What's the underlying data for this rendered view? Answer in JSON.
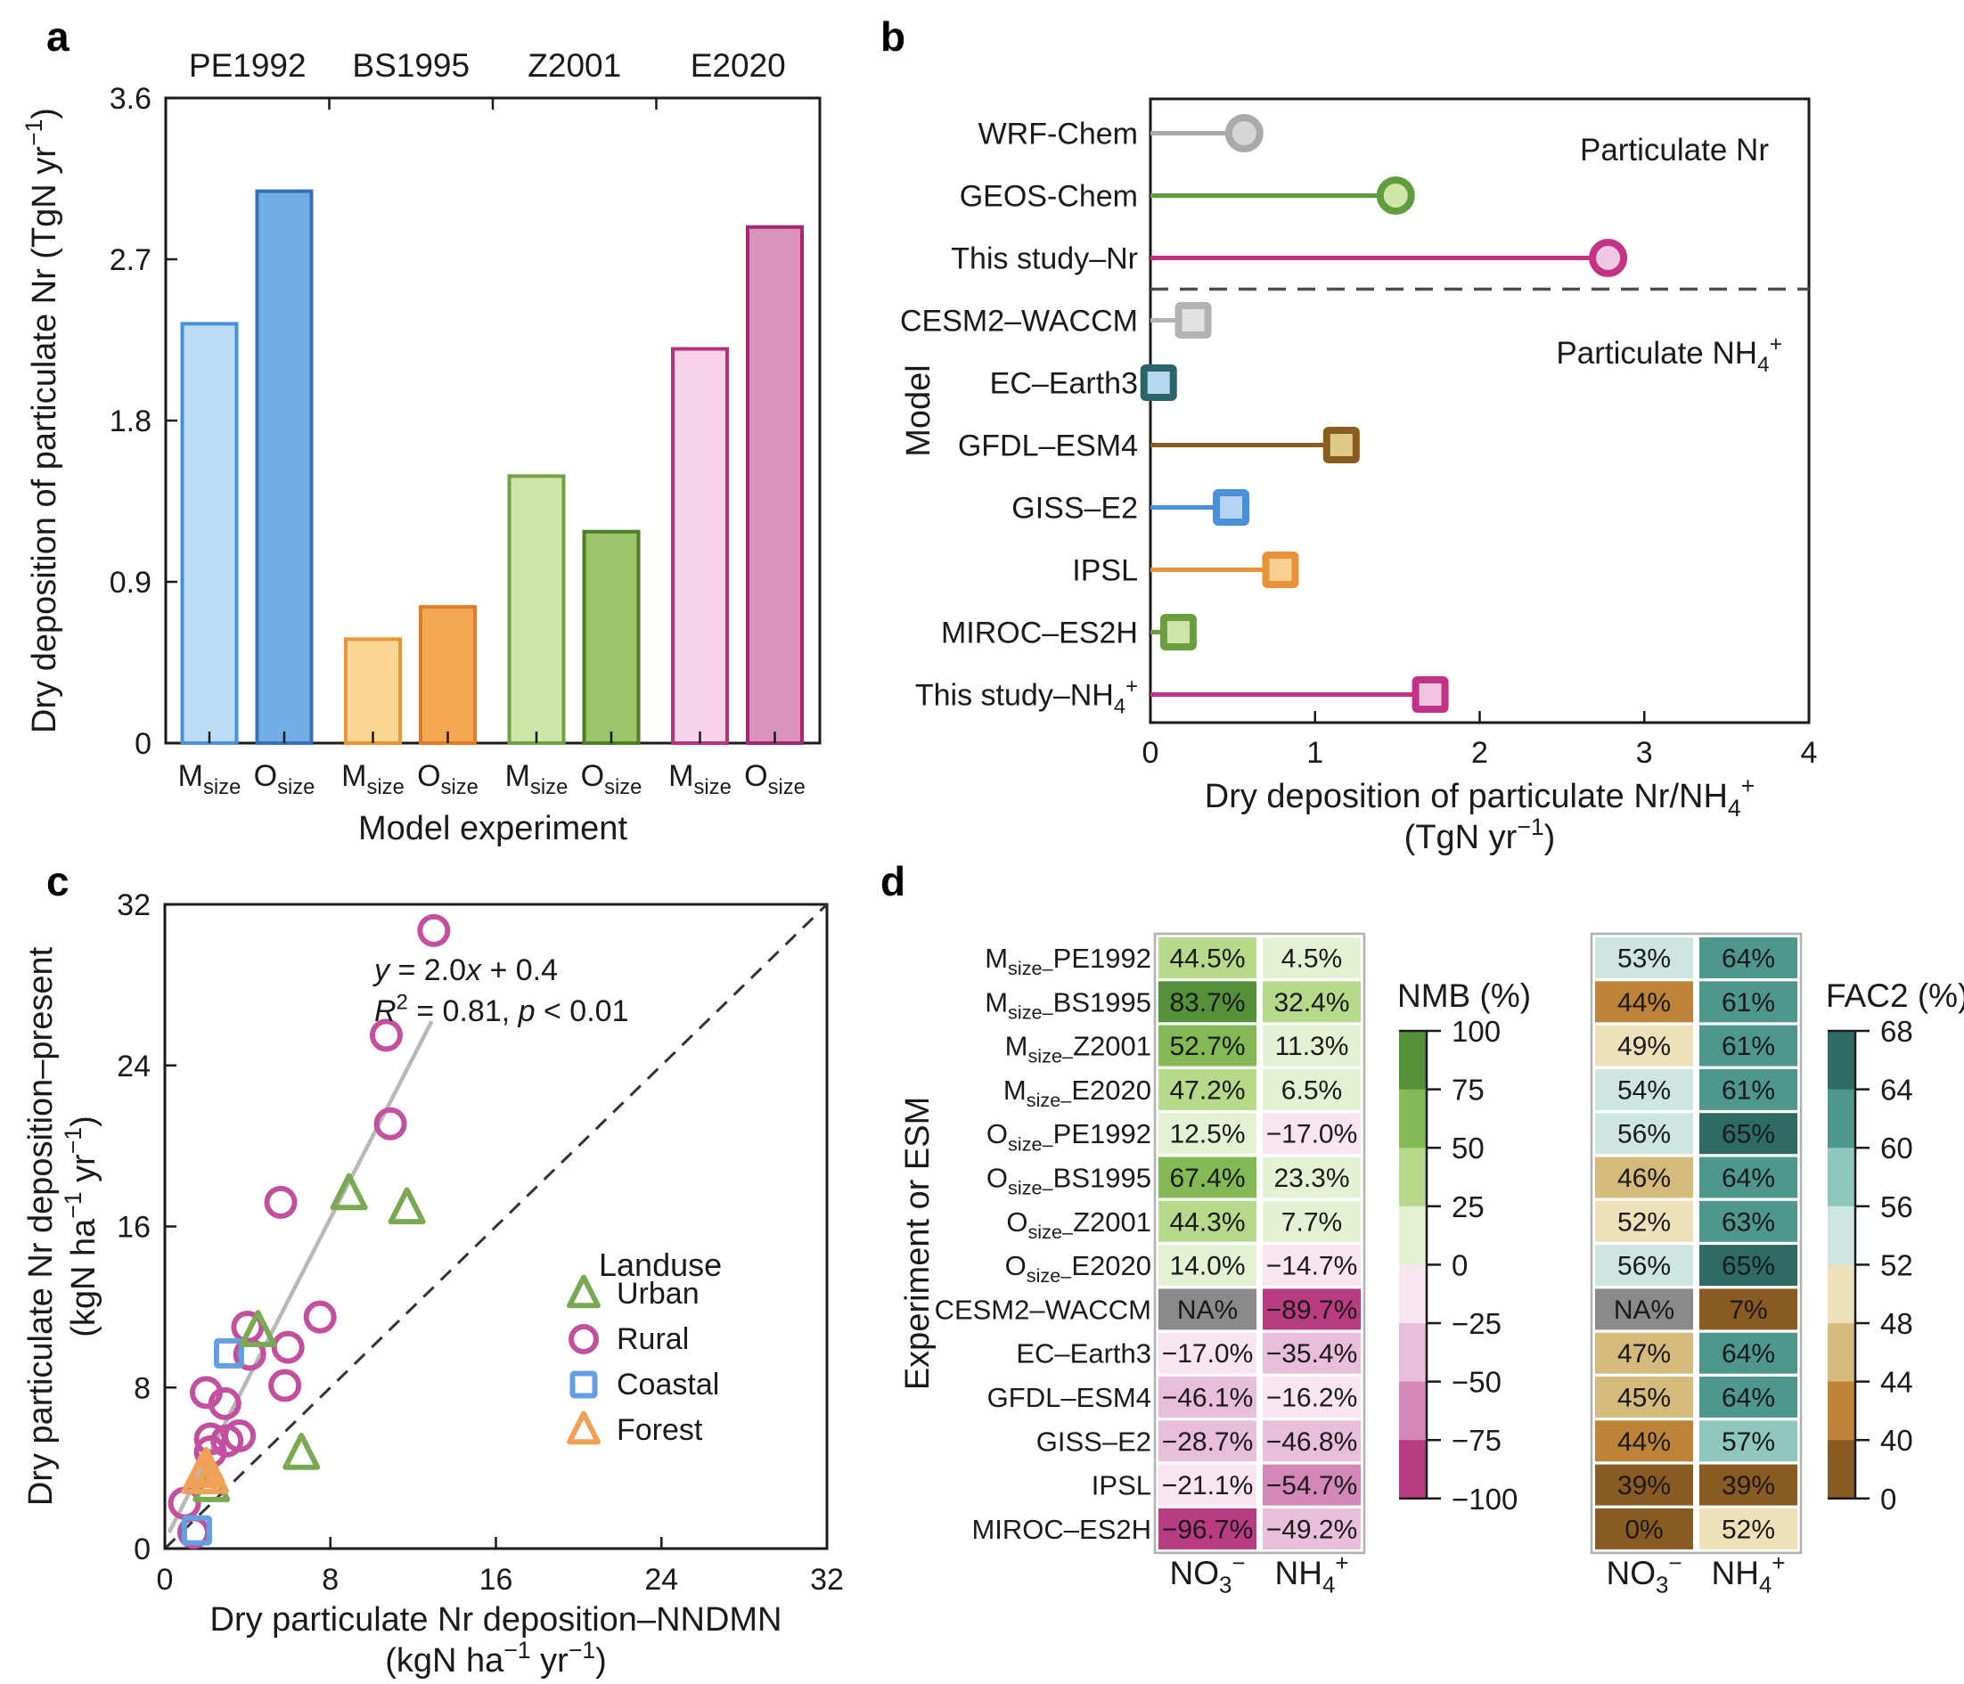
{
  "figure": {
    "panel_letters": [
      "a",
      "b",
      "c",
      "d"
    ]
  },
  "chart_data": [
    {
      "id": "a",
      "type": "bar",
      "ylabel": [
        {
          "t": "Dry deposition of particulate Nr (TgN yr"
        },
        {
          "t": "−1",
          "s": "sup"
        },
        {
          "t": ")"
        }
      ],
      "xlabel": [
        {
          "t": "Model experiment"
        }
      ],
      "ylim": [
        0,
        3.6
      ],
      "yticks": [
        "0",
        "0.9",
        "1.8",
        "2.7",
        "3.6"
      ],
      "ytick_values": [
        0,
        0.9,
        1.8,
        2.7,
        3.6
      ],
      "groups": [
        "PE1992",
        "BS1995",
        "Z2001",
        "E2020"
      ],
      "bar_tick_labels": [
        [
          {
            "t": "M"
          },
          {
            "t": "size",
            "s": "sub"
          }
        ],
        [
          {
            "t": "O"
          },
          {
            "t": "size",
            "s": "sub"
          }
        ]
      ],
      "bars": [
        {
          "group": "PE1992",
          "experiment": "Msize",
          "value": 2.34,
          "fill": "#bcdcf5",
          "stroke": "#4a90d9"
        },
        {
          "group": "PE1992",
          "experiment": "Osize",
          "value": 3.08,
          "fill": "#74aee6",
          "stroke": "#3572b8"
        },
        {
          "group": "BS1995",
          "experiment": "Msize",
          "value": 0.58,
          "fill": "#fbd691",
          "stroke": "#ec9435"
        },
        {
          "group": "BS1995",
          "experiment": "Osize",
          "value": 0.76,
          "fill": "#f2a952",
          "stroke": "#e07b28"
        },
        {
          "group": "Z2001",
          "experiment": "Msize",
          "value": 1.49,
          "fill": "#cfe6ab",
          "stroke": "#70a044"
        },
        {
          "group": "Z2001",
          "experiment": "Osize",
          "value": 1.18,
          "fill": "#9cc46b",
          "stroke": "#4e7e2a"
        },
        {
          "group": "E2020",
          "experiment": "Msize",
          "value": 2.2,
          "fill": "#f5d2e8",
          "stroke": "#b3337e"
        },
        {
          "group": "E2020",
          "experiment": "Osize",
          "value": 2.88,
          "fill": "#d893bd",
          "stroke": "#a12870"
        }
      ]
    },
    {
      "id": "b",
      "type": "lollipop",
      "ylabel": [
        {
          "t": "Model"
        }
      ],
      "xlabel_line1": [
        {
          "t": "Dry deposition of particulate Nr/NH"
        },
        {
          "t": "4",
          "s": "sub"
        },
        {
          "t": "+",
          "s": "sup"
        }
      ],
      "xlabel_line2": [
        {
          "t": "(TgN yr"
        },
        {
          "t": "−1",
          "s": "sup"
        },
        {
          "t": ")"
        }
      ],
      "xlim": [
        0,
        4
      ],
      "xticks": [
        "0",
        "1",
        "2",
        "3",
        "4"
      ],
      "xtick_values": [
        0,
        1,
        2,
        3,
        4
      ],
      "annotation_top": [
        {
          "t": "Particulate Nr"
        }
      ],
      "annotation_bottom": [
        {
          "t": "Particulate NH"
        },
        {
          "t": "4",
          "s": "sub"
        },
        {
          "t": "+",
          "s": "sup"
        }
      ],
      "separator_after_index": 2,
      "items": [
        {
          "label": [
            {
              "t": "WRF-Chem"
            }
          ],
          "value": 0.57,
          "marker": "circle",
          "stroke": "#a9a9a9",
          "fill": "#d6d6d6"
        },
        {
          "label": [
            {
              "t": "GEOS-Chem"
            }
          ],
          "value": 1.49,
          "marker": "circle",
          "stroke": "#5f9e3f",
          "fill": "#cfe6a8"
        },
        {
          "label": [
            {
              "t": "This study–Nr"
            }
          ],
          "value": 2.78,
          "marker": "circle",
          "stroke": "#c23385",
          "fill": "#efc9e1"
        },
        {
          "label": [
            {
              "t": "CESM2–WACCM"
            }
          ],
          "value": 0.26,
          "marker": "square",
          "stroke": "#b3b3b3",
          "fill": "#e2e2e2"
        },
        {
          "label": [
            {
              "t": "EC–Earth3"
            }
          ],
          "value": 0.05,
          "marker": "square",
          "stroke": "#2a6368",
          "fill": "#b5d7f0"
        },
        {
          "label": [
            {
              "t": "GFDL–ESM4"
            }
          ],
          "value": 1.16,
          "marker": "square",
          "stroke": "#8a5d1e",
          "fill": "#dfca8a"
        },
        {
          "label": [
            {
              "t": "GISS–E2"
            }
          ],
          "value": 0.49,
          "marker": "square",
          "stroke": "#4a90d9",
          "fill": "#b5d4f2"
        },
        {
          "label": [
            {
              "t": "IPSL"
            }
          ],
          "value": 0.79,
          "marker": "square",
          "stroke": "#e8923a",
          "fill": "#f7cf8e"
        },
        {
          "label": [
            {
              "t": "MIROC–ES2H"
            }
          ],
          "value": 0.17,
          "marker": "square",
          "stroke": "#6a9e3f",
          "fill": "#cde5a8"
        },
        {
          "label": [
            {
              "t": "This study–NH"
            },
            {
              "t": "4",
              "s": "sub"
            },
            {
              "t": "+",
              "s": "sup"
            }
          ],
          "value": 1.7,
          "marker": "square",
          "stroke": "#c23385",
          "fill": "#f0c4e0"
        }
      ]
    },
    {
      "id": "c",
      "type": "scatter",
      "xlabel_line1": [
        {
          "t": "Dry particulate Nr deposition–NNDMN"
        }
      ],
      "xlabel_line2": [
        {
          "t": "(kgN ha"
        },
        {
          "t": "−1",
          "s": "sup"
        },
        {
          "t": " yr"
        },
        {
          "t": "−1",
          "s": "sup"
        },
        {
          "t": ")"
        }
      ],
      "ylabel_line1": [
        {
          "t": "Dry particulate Nr deposition–present"
        }
      ],
      "ylabel_line2": [
        {
          "t": "(kgN ha"
        },
        {
          "t": "−1",
          "s": "sup"
        },
        {
          "t": " yr"
        },
        {
          "t": "−1",
          "s": "sup"
        },
        {
          "t": ")"
        }
      ],
      "xlim": [
        0,
        32
      ],
      "ylim": [
        0,
        32
      ],
      "xticks": [
        "0",
        "8",
        "16",
        "24",
        "32"
      ],
      "yticks": [
        "0",
        "8",
        "16",
        "24",
        "32"
      ],
      "tick_values": [
        0,
        8,
        16,
        24,
        32
      ],
      "equation_line1": [
        {
          "t": "y",
          "s": "i"
        },
        {
          "t": " = 2.0"
        },
        {
          "t": "x",
          "s": "i"
        },
        {
          "t": " + 0.4"
        }
      ],
      "equation_line2": [
        {
          "t": "R",
          "s": "i"
        },
        {
          "t": "2",
          "s": "sup"
        },
        {
          "t": " = 0.81, "
        },
        {
          "t": "p",
          "s": "i"
        },
        {
          "t": " < 0.01"
        }
      ],
      "regression": {
        "x1": 0.2,
        "y1": 0.8,
        "x2": 12.9,
        "y2": 26.2,
        "color": "#b8b8b8"
      },
      "identity_line_color": "#333333",
      "legend": {
        "title": [
          {
            "t": "Landuse"
          }
        ],
        "items": [
          {
            "label": [
              {
                "t": "Urban"
              }
            ],
            "marker": "triangle",
            "color": "#7aa853"
          },
          {
            "label": [
              {
                "t": "Rural"
              }
            ],
            "marker": "circle",
            "color": "#c2509e"
          },
          {
            "label": [
              {
                "t": "Coastal"
              }
            ],
            "marker": "square",
            "color": "#669fe0"
          },
          {
            "label": [
              {
                "t": "Forest"
              }
            ],
            "marker": "triangle",
            "color": "#f0a057"
          }
        ]
      },
      "series": [
        {
          "name": "Rural",
          "marker": "circle",
          "color": "#c2509e",
          "points": [
            [
              13.0,
              30.7
            ],
            [
              10.7,
              25.5
            ],
            [
              10.9,
              21.1
            ],
            [
              5.6,
              17.2
            ],
            [
              7.5,
              11.5
            ],
            [
              4.0,
              11.0
            ],
            [
              5.95,
              10.0
            ],
            [
              4.1,
              9.65
            ],
            [
              5.8,
              8.1
            ],
            [
              2.0,
              7.75
            ],
            [
              2.9,
              7.2
            ],
            [
              2.2,
              5.45
            ],
            [
              3.6,
              5.6
            ],
            [
              3.0,
              5.35
            ],
            [
              2.2,
              4.8
            ],
            [
              0.95,
              2.25
            ],
            [
              1.4,
              0.8
            ]
          ]
        },
        {
          "name": "Coastal",
          "marker": "square",
          "color": "#669fe0",
          "points": [
            [
              3.1,
              9.7
            ],
            [
              1.55,
              0.9
            ]
          ]
        },
        {
          "name": "Urban",
          "marker": "triangle",
          "color": "#7aa853",
          "points": [
            [
              8.9,
              17.6
            ],
            [
              11.7,
              16.9
            ],
            [
              4.5,
              10.8
            ],
            [
              6.6,
              4.7
            ],
            [
              2.25,
              3.1
            ]
          ]
        },
        {
          "name": "Forest",
          "marker": "triangle",
          "color": "#f0a057",
          "points": [
            [
              2.0,
              4.0
            ],
            [
              1.85,
              3.8
            ],
            [
              2.2,
              3.5
            ],
            [
              1.7,
              3.5
            ]
          ]
        }
      ]
    },
    {
      "id": "d",
      "type": "heatmap",
      "ylabel": [
        {
          "t": "Experiment or ESM"
        }
      ],
      "row_labels": [
        [
          {
            "t": "M"
          },
          {
            "t": "size–",
            "s": "sub"
          },
          {
            "t": "PE1992"
          }
        ],
        [
          {
            "t": "M"
          },
          {
            "t": "size–",
            "s": "sub"
          },
          {
            "t": "BS1995"
          }
        ],
        [
          {
            "t": "M"
          },
          {
            "t": "size–",
            "s": "sub"
          },
          {
            "t": "Z2001"
          }
        ],
        [
          {
            "t": "M"
          },
          {
            "t": "size–",
            "s": "sub"
          },
          {
            "t": "E2020"
          }
        ],
        [
          {
            "t": "O"
          },
          {
            "t": "size–",
            "s": "sub"
          },
          {
            "t": "PE1992"
          }
        ],
        [
          {
            "t": "O"
          },
          {
            "t": "size–",
            "s": "sub"
          },
          {
            "t": "BS1995"
          }
        ],
        [
          {
            "t": "O"
          },
          {
            "t": "size–",
            "s": "sub"
          },
          {
            "t": "Z2001"
          }
        ],
        [
          {
            "t": "O"
          },
          {
            "t": "size–",
            "s": "sub"
          },
          {
            "t": "E2020"
          }
        ],
        [
          {
            "t": "CESM2–WACCM"
          }
        ],
        [
          {
            "t": "EC–Earth3"
          }
        ],
        [
          {
            "t": "GFDL–ESM4"
          }
        ],
        [
          {
            "t": "GISS–E2"
          }
        ],
        [
          {
            "t": "IPSL"
          }
        ],
        [
          {
            "t": "MIROC–ES2H"
          }
        ]
      ],
      "col_label_no3": [
        {
          "t": "NO"
        },
        {
          "t": "3",
          "s": "sub"
        },
        {
          "t": "−",
          "s": "sup"
        }
      ],
      "col_label_nh4": [
        {
          "t": "NH"
        },
        {
          "t": "4",
          "s": "sub"
        },
        {
          "t": "+",
          "s": "sup"
        }
      ],
      "nmb": {
        "title": [
          {
            "t": "NMB (%)"
          }
        ],
        "text_color": "#111111",
        "values": [
          [
            "44.5%",
            "4.5%"
          ],
          [
            "83.7%",
            "32.4%"
          ],
          [
            "52.7%",
            "11.3%"
          ],
          [
            "47.2%",
            "6.5%"
          ],
          [
            "12.5%",
            "−17.0%"
          ],
          [
            "67.4%",
            "23.3%"
          ],
          [
            "44.3%",
            "7.7%"
          ],
          [
            "14.0%",
            "−14.7%"
          ],
          [
            "NA%",
            "−89.7%"
          ],
          [
            "−17.0%",
            "−35.4%"
          ],
          [
            "−46.1%",
            "−16.2%"
          ],
          [
            "−28.7%",
            "−46.8%"
          ],
          [
            "−21.1%",
            "−54.7%"
          ],
          [
            "−96.7%",
            "−49.2%"
          ]
        ],
        "cell_colors": [
          [
            "#b7d98b",
            "#e5f1d3"
          ],
          [
            "#55903a",
            "#b7d98b"
          ],
          [
            "#83ba55",
            "#e5f1d3"
          ],
          [
            "#b7d98b",
            "#e5f1d3"
          ],
          [
            "#e5f1d3",
            "#f8e5f1"
          ],
          [
            "#83ba55",
            "#e5f1d3"
          ],
          [
            "#b7d98b",
            "#e5f1d3"
          ],
          [
            "#e5f1d3",
            "#f8e5f1"
          ],
          [
            "#8a8a8a",
            "#b93c82"
          ],
          [
            "#f8e5f1",
            "#e8bedb"
          ],
          [
            "#e8bedb",
            "#f8e5f1"
          ],
          [
            "#e8bedb",
            "#e8bedb"
          ],
          [
            "#f8e5f1",
            "#d488b9"
          ],
          [
            "#b93c82",
            "#e8bedb"
          ]
        ],
        "colorbar": {
          "ticks": [
            "100",
            "75",
            "50",
            "25",
            "0",
            "−25",
            "−50",
            "−75",
            "−100"
          ],
          "colors": [
            "#55903a",
            "#83ba55",
            "#b7d98b",
            "#e5f1d3",
            "#f8e5f1",
            "#e8bedb",
            "#d488b9",
            "#b93c82"
          ]
        }
      },
      "fac2": {
        "title": [
          {
            "t": "FAC2 (%)"
          }
        ],
        "text_color": "#ffffff",
        "values": [
          [
            "53%",
            "64%"
          ],
          [
            "44%",
            "61%"
          ],
          [
            "49%",
            "61%"
          ],
          [
            "54%",
            "61%"
          ],
          [
            "56%",
            "65%"
          ],
          [
            "46%",
            "64%"
          ],
          [
            "52%",
            "63%"
          ],
          [
            "56%",
            "65%"
          ],
          [
            "NA%",
            "7%"
          ],
          [
            "47%",
            "64%"
          ],
          [
            "45%",
            "64%"
          ],
          [
            "44%",
            "57%"
          ],
          [
            "39%",
            "39%"
          ],
          [
            "0%",
            "52%"
          ]
        ],
        "cell_colors": [
          [
            "#cde6e1",
            "#4f968d"
          ],
          [
            "#bd8338",
            "#4f968d"
          ],
          [
            "#eee1ba",
            "#4f968d"
          ],
          [
            "#cde6e1",
            "#4f968d"
          ],
          [
            "#cde6e1",
            "#2d6b63"
          ],
          [
            "#d6b97c",
            "#4f968d"
          ],
          [
            "#eee1ba",
            "#4f968d"
          ],
          [
            "#cde6e1",
            "#2d6b63"
          ],
          [
            "#8a8a8a",
            "#8a5a24"
          ],
          [
            "#d6b97c",
            "#4f968d"
          ],
          [
            "#d6b97c",
            "#4f968d"
          ],
          [
            "#bd8338",
            "#8fc7bd"
          ],
          [
            "#8a5a24",
            "#8a5a24"
          ],
          [
            "#8a5a24",
            "#eee1ba"
          ]
        ],
        "colorbar": {
          "ticks": [
            "68",
            "64",
            "60",
            "56",
            "52",
            "48",
            "44",
            "40",
            "0"
          ],
          "colors": [
            "#2d6b63",
            "#4f968d",
            "#8fc7bd",
            "#cde6e1",
            "#eee1ba",
            "#d6b97c",
            "#bd8338",
            "#8a5a24"
          ]
        }
      }
    }
  ]
}
